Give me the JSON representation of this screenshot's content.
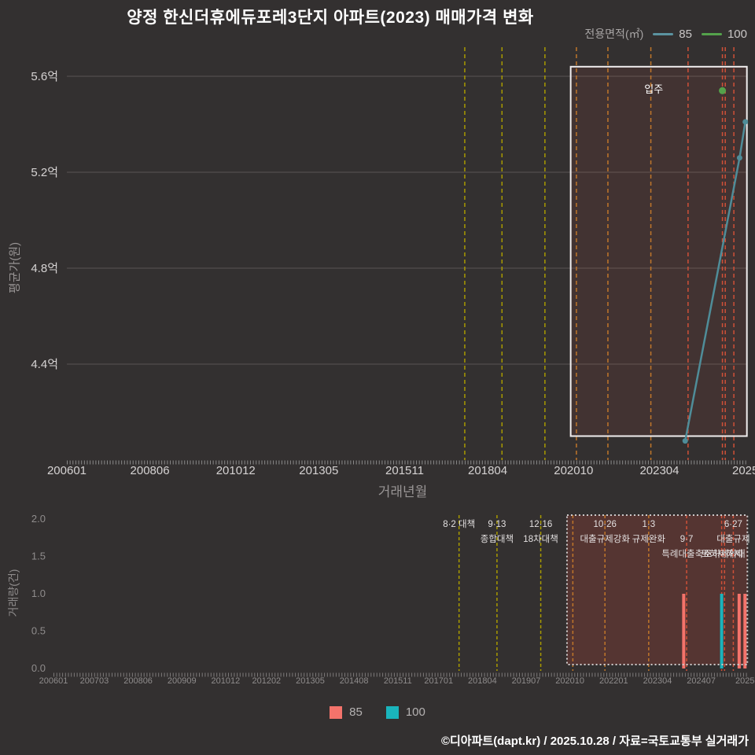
{
  "title": "양정 한신더휴에듀포레3단지 아파트(2023) 매매가격 변화",
  "area_legend": {
    "label": "전용면적(㎡)",
    "items": [
      {
        "label": "85",
        "color": "#5b93a0"
      },
      {
        "label": "100",
        "color": "#54a24b"
      }
    ]
  },
  "chart_data": [
    {
      "type": "line",
      "name": "매매 평균가",
      "ylabel": "평균가(원)",
      "xlabel": "거래년월",
      "ylim": [
        4.0,
        5.72
      ],
      "grid": true,
      "y_ticks": [
        {
          "label": "5.6억",
          "value": 5.6
        },
        {
          "label": "5.2억",
          "value": 5.2
        },
        {
          "label": "4.8억",
          "value": 4.8
        },
        {
          "label": "4.4억",
          "value": 4.4
        }
      ],
      "x_ticks": [
        {
          "label": "200601",
          "date": "2006-01"
        },
        {
          "label": "200806",
          "date": "2008-06"
        },
        {
          "label": "201012",
          "date": "2010-12"
        },
        {
          "label": "201305",
          "date": "2013-05"
        },
        {
          "label": "201511",
          "date": "2015-11"
        },
        {
          "label": "201804",
          "date": "2018-04"
        },
        {
          "label": "202010",
          "date": "2020-10"
        },
        {
          "label": "202304",
          "date": "2023-04"
        },
        {
          "label": "2025",
          "date": "2025-10"
        }
      ],
      "series": [
        {
          "name": "85",
          "color": "#4f8d99",
          "points": [
            [
              "2024-01",
              4.08
            ],
            [
              "2025-08",
              5.26
            ],
            [
              "2025-10",
              5.41
            ]
          ]
        },
        {
          "name": "100",
          "color": "#54a24b",
          "points": [
            [
              "2025-02",
              5.54
            ]
          ]
        }
      ],
      "highlight_box": {
        "x_start": "2020-09",
        "x_end": "2025-10",
        "y_min": 4.1,
        "y_max": 5.64
      },
      "move_in": {
        "label": "입주",
        "date": "2023-02"
      }
    },
    {
      "type": "bar",
      "name": "거래량",
      "ylabel": "거래량(건)",
      "ylim": [
        0,
        2
      ],
      "y_ticks": [
        {
          "label": "2.0",
          "value": 2.0
        },
        {
          "label": "1.5",
          "value": 1.5
        },
        {
          "label": "1.0",
          "value": 1.0
        },
        {
          "label": "0.5",
          "value": 0.5
        },
        {
          "label": "0.0",
          "value": 0.0
        }
      ],
      "x_ticks": [
        {
          "label": "200601",
          "date": "2006-01"
        },
        {
          "label": "200703",
          "date": "2007-03"
        },
        {
          "label": "200806",
          "date": "2008-06"
        },
        {
          "label": "200909",
          "date": "2009-09"
        },
        {
          "label": "201012",
          "date": "2010-12"
        },
        {
          "label": "201202",
          "date": "2012-02"
        },
        {
          "label": "201305",
          "date": "2013-05"
        },
        {
          "label": "201408",
          "date": "2014-08"
        },
        {
          "label": "201511",
          "date": "2015-11"
        },
        {
          "label": "201701",
          "date": "2017-01"
        },
        {
          "label": "201804",
          "date": "2018-04"
        },
        {
          "label": "201907",
          "date": "2019-07"
        },
        {
          "label": "202010",
          "date": "2020-10"
        },
        {
          "label": "202201",
          "date": "2022-01"
        },
        {
          "label": "202304",
          "date": "2023-04"
        },
        {
          "label": "202407",
          "date": "2024-07"
        },
        {
          "label": "2025",
          "date": "2025-10"
        }
      ],
      "series": [
        {
          "name": "85",
          "color": "#f4736b",
          "bars": [
            [
              "2024-01",
              1
            ],
            [
              "2025-08",
              1
            ],
            [
              "2025-10",
              1
            ]
          ]
        },
        {
          "name": "100",
          "color": "#1ab4bc",
          "bars": [
            [
              "2025-02",
              1
            ]
          ]
        }
      ],
      "zoom_box": {
        "x_start": "2020-09",
        "x_end": "2025-10"
      }
    }
  ],
  "policies": [
    {
      "date": "2017-08",
      "tier": "yellow",
      "label_row": 1,
      "labels": [
        "8·2 대책"
      ]
    },
    {
      "date": "2018-09",
      "tier": "yellow",
      "label_row": 1,
      "labels": [
        "9·13",
        "종합대책"
      ]
    },
    {
      "date": "2019-12",
      "tier": "yellow",
      "label_row": 1,
      "labels": [
        "12·16",
        "18차대책"
      ]
    },
    {
      "date": "2020-11",
      "tier": "orange",
      "label_row": 1,
      "labels": []
    },
    {
      "date": "2021-10",
      "tier": "orange",
      "label_row": 1,
      "labels": [
        "10·26",
        "대출규제강화"
      ]
    },
    {
      "date": "2023-01",
      "tier": "orange",
      "label_row": 1,
      "labels": [
        "1·3",
        "규제완화"
      ]
    },
    {
      "date": "2024-02",
      "tier": "red",
      "label_row": 2,
      "labels": [
        "9·7",
        "특례대출축소"
      ]
    },
    {
      "date": "2025-02",
      "tier": "red",
      "label_row": 3,
      "labels": [
        "토허제해제"
      ]
    },
    {
      "date": "2025-03",
      "tier": "red",
      "label_row": 3,
      "labels": [
        "토허제확대"
      ]
    },
    {
      "date": "2025-06",
      "tier": "red",
      "label_row": 1,
      "labels": [
        "6·27",
        "대출규제"
      ]
    }
  ],
  "policy_colors": {
    "yellow": "#a89a00",
    "orange": "#c0762a",
    "red": "#cf5038"
  },
  "bottom_legend": {
    "items": [
      {
        "label": "85",
        "color": "#f4736b"
      },
      {
        "label": "100",
        "color": "#1ab4bc"
      }
    ]
  },
  "footer": "©디아파트(dapt.kr) / 2025.10.28 / 자료=국토교통부 실거래가"
}
